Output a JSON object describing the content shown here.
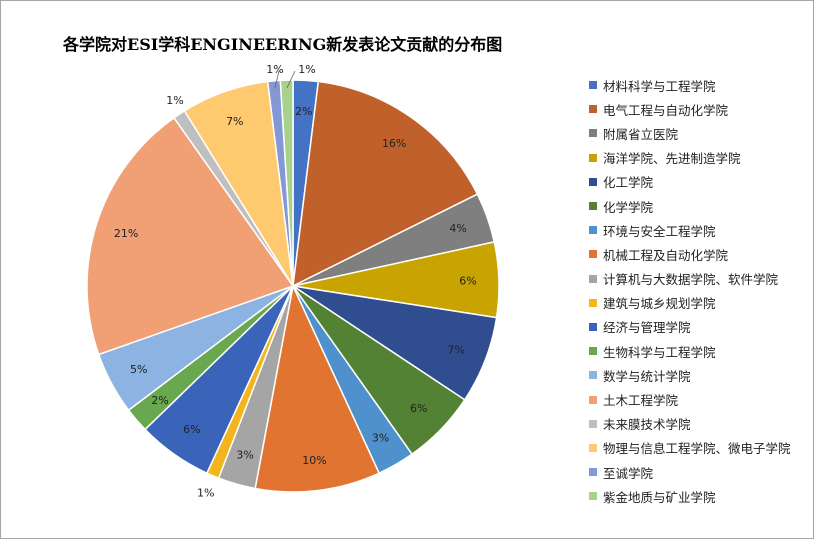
{
  "chart_data": {
    "type": "pie",
    "title": "各学院对ESI学科ENGINEERING新发表论文贡献的分布图",
    "legend_position": "right",
    "slices": [
      {
        "label": "材料科学与工程学院",
        "value": 2,
        "display": "2%",
        "color": "#4472c4"
      },
      {
        "label": "电气工程与自动化学院",
        "value": 16,
        "display": "16%",
        "color": "#c0612b"
      },
      {
        "label": "附属省立医院",
        "value": 4,
        "display": "4%",
        "color": "#7f7f7f"
      },
      {
        "label": "海洋学院、先进制造学院",
        "value": 6,
        "display": "6%",
        "color": "#c9a300"
      },
      {
        "label": "化工学院",
        "value": 7,
        "display": "7%",
        "color": "#2f4d8f"
      },
      {
        "label": "化学学院",
        "value": 6,
        "display": "6%",
        "color": "#548235"
      },
      {
        "label": "环境与安全工程学院",
        "value": 3,
        "display": "3%",
        "color": "#4f91cd"
      },
      {
        "label": "机械工程及自动化学院",
        "value": 10,
        "display": "10%",
        "color": "#e07430"
      },
      {
        "label": "计算机与大数据学院、软件学院",
        "value": 3,
        "display": "3%",
        "color": "#a5a5a5"
      },
      {
        "label": "建筑与城乡规划学院",
        "value": 1,
        "display": "1%",
        "color": "#f2b51d"
      },
      {
        "label": "经济与管理学院",
        "value": 6,
        "display": "6%",
        "color": "#3a64b9"
      },
      {
        "label": "生物科学与工程学院",
        "value": 2,
        "display": "2%",
        "color": "#6aa84f"
      },
      {
        "label": "数学与统计学院",
        "value": 5,
        "display": "5%",
        "color": "#8db3e2"
      },
      {
        "label": "土木工程学院",
        "value": 21,
        "display": "21%",
        "color": "#f0a074"
      },
      {
        "label": "未来膜技术学院",
        "value": 1,
        "display": "1%",
        "color": "#bfbfbf"
      },
      {
        "label": "物理与信息工程学院、微电子学院",
        "value": 7,
        "display": "7%",
        "color": "#ffc970"
      },
      {
        "label": "至诚学院",
        "value": 1,
        "display": "1%",
        "color": "#8497d6"
      },
      {
        "label": "紫金地质与矿业学院",
        "value": 1,
        "display": "1%",
        "color": "#a9d18e"
      }
    ]
  }
}
